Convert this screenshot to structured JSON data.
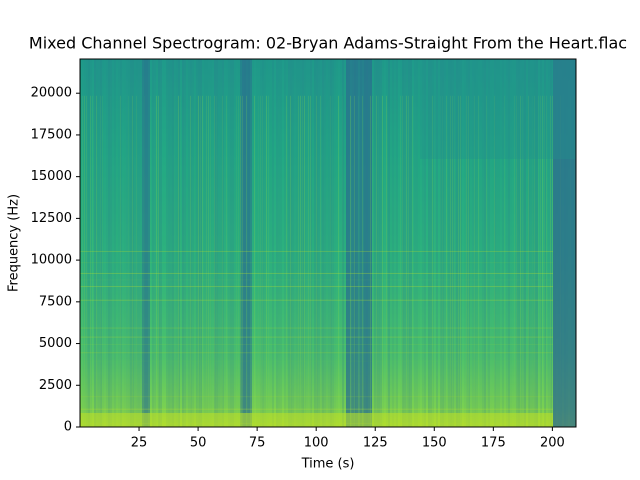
{
  "chart_data": {
    "type": "spectrogram",
    "title": "Mixed Channel Spectrogram: 02-Bryan Adams-Straight From the Heart.flac",
    "xlabel": "Time (s)",
    "ylabel": "Frequency (Hz)",
    "xlim": [
      0,
      210
    ],
    "xticks": [
      25,
      50,
      75,
      100,
      125,
      150,
      175,
      200
    ],
    "ylim": [
      0,
      22050
    ],
    "yticks": [
      0,
      2500,
      5000,
      7500,
      10000,
      12500,
      15000,
      17500,
      20000
    ]
  }
}
